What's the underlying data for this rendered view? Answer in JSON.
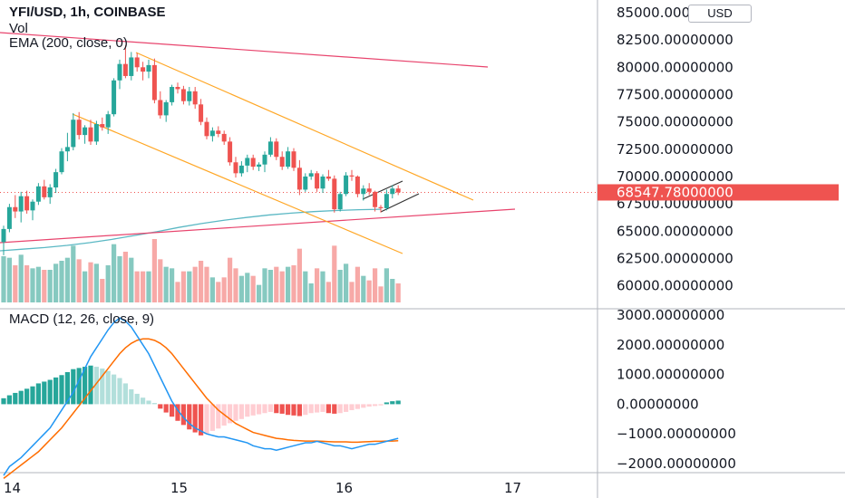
{
  "header": {
    "symbol_line": "YFI/USD, 1h, COINBASE",
    "volume_label": "Vol",
    "ema_label": "EMA (200, close, 0)",
    "macd_label": "MACD (12, 26, close, 9)",
    "currency": "USD"
  },
  "price_axis": {
    "labels": [
      "85000.00000000",
      "82500.00000000",
      "80000.00000000",
      "77500.00000000",
      "75000.00000000",
      "72500.00000000",
      "70000.00000000",
      "67500.00000000",
      "65000.00000000",
      "62500.00000000",
      "60000.00000000"
    ],
    "last_price_label": "68547.78000000"
  },
  "macd_axis": {
    "labels": [
      "3000.00000000",
      "2000.00000000",
      "1000.00000000",
      "0.00000000",
      "−1000.00000000",
      "−2000.00000000"
    ]
  },
  "time_axis": {
    "labels": [
      "14",
      "15",
      "16",
      "17"
    ]
  },
  "colors": {
    "up": "#26a69a",
    "down": "#ef5350",
    "vol_up": "#86c9c0",
    "vol_down": "#f7a9a7",
    "ema": "#5bb8c4",
    "channel": "#ffa726",
    "trend": "#e8446d",
    "macd": "#2196f3",
    "signal": "#ff6d00"
  },
  "chart_data": {
    "type": "candlestick",
    "symbol": "YFI/USD",
    "timeframe": "1h",
    "exchange": "COINBASE",
    "price_range": [
      58500,
      86000
    ],
    "last_price": 68547.78,
    "candles": [
      [
        64000,
        65500,
        62800,
        65200
      ],
      [
        65200,
        67500,
        64900,
        67200
      ],
      [
        67200,
        68300,
        66200,
        66800
      ],
      [
        66800,
        68600,
        65800,
        68200
      ],
      [
        68200,
        68700,
        66600,
        66900
      ],
      [
        66900,
        67900,
        66000,
        67700
      ],
      [
        67700,
        69400,
        67400,
        69100
      ],
      [
        69100,
        69700,
        67900,
        68100
      ],
      [
        68100,
        69300,
        67500,
        69000
      ],
      [
        69000,
        70700,
        68500,
        70400
      ],
      [
        70400,
        72600,
        70200,
        72300
      ],
      [
        72300,
        74000,
        71400,
        72700
      ],
      [
        72700,
        75800,
        72400,
        75200
      ],
      [
        75200,
        75900,
        73400,
        73800
      ],
      [
        73800,
        74700,
        73000,
        74500
      ],
      [
        74500,
        75200,
        72900,
        73200
      ],
      [
        73200,
        75100,
        72900,
        74800
      ],
      [
        74800,
        75400,
        74200,
        74500
      ],
      [
        74500,
        76000,
        73900,
        75700
      ],
      [
        75700,
        79000,
        75500,
        78800
      ],
      [
        78800,
        80700,
        78000,
        80300
      ],
      [
        80300,
        82000,
        79000,
        79200
      ],
      [
        79200,
        81400,
        78800,
        80900
      ],
      [
        80900,
        81300,
        79600,
        80000
      ],
      [
        80000,
        80500,
        78800,
        79600
      ],
      [
        79600,
        80700,
        79000,
        80200
      ],
      [
        80200,
        80800,
        76700,
        77000
      ],
      [
        77000,
        77800,
        75300,
        75600
      ],
      [
        75600,
        77000,
        75000,
        76800
      ],
      [
        76800,
        78400,
        76500,
        78200
      ],
      [
        78200,
        78600,
        77600,
        78000
      ],
      [
        78000,
        78300,
        76600,
        76900
      ],
      [
        76900,
        78200,
        76500,
        77800
      ],
      [
        77800,
        78200,
        76200,
        76600
      ],
      [
        76600,
        77100,
        74700,
        75000
      ],
      [
        75000,
        75400,
        73400,
        73700
      ],
      [
        73700,
        74500,
        73200,
        74200
      ],
      [
        74200,
        74600,
        73600,
        73900
      ],
      [
        73900,
        74200,
        72900,
        73200
      ],
      [
        73200,
        73600,
        71000,
        71300
      ],
      [
        71300,
        71800,
        69900,
        70300
      ],
      [
        70300,
        71400,
        70000,
        71000
      ],
      [
        71000,
        72000,
        70400,
        71700
      ],
      [
        71700,
        72000,
        70600,
        70900
      ],
      [
        70900,
        71300,
        70500,
        71100
      ],
      [
        71100,
        72300,
        70400,
        72000
      ],
      [
        72000,
        73600,
        71800,
        73200
      ],
      [
        73200,
        73500,
        71500,
        71800
      ],
      [
        71800,
        72300,
        70600,
        70900
      ],
      [
        70900,
        72700,
        70700,
        72300
      ],
      [
        72300,
        72600,
        70500,
        70800
      ],
      [
        70800,
        71500,
        68300,
        68800
      ],
      [
        68800,
        70300,
        68600,
        70000
      ],
      [
        70000,
        70600,
        69700,
        70300
      ],
      [
        70300,
        70500,
        68600,
        68900
      ],
      [
        68900,
        70200,
        68500,
        70000
      ],
      [
        70000,
        70600,
        69600,
        69800
      ],
      [
        69800,
        70100,
        66700,
        67000
      ],
      [
        67000,
        68600,
        66800,
        68400
      ],
      [
        68400,
        70400,
        68200,
        70100
      ],
      [
        70100,
        70600,
        69600,
        70000
      ],
      [
        70000,
        70100,
        68100,
        68400
      ],
      [
        68400,
        69200,
        67800,
        68900
      ],
      [
        68900,
        69400,
        68300,
        68600
      ],
      [
        68600,
        68700,
        66800,
        67200
      ],
      [
        67200,
        67400,
        66700,
        67100
      ],
      [
        67100,
        68800,
        66900,
        68400
      ],
      [
        68400,
        69200,
        68000,
        68900
      ],
      [
        68900,
        69200,
        68300,
        68548
      ]
    ],
    "ema_200": [
      63200,
      63350,
      63500,
      63700,
      63950,
      64250,
      64600,
      64950,
      65350,
      65700,
      66000,
      66250,
      66480,
      66650,
      66790,
      66890,
      66960,
      67000
    ],
    "ascending_channel_note": "",
    "macd": {
      "range": [
        -2500,
        3400
      ],
      "histogram": [
        200,
        300,
        380,
        450,
        520,
        600,
        700,
        760,
        820,
        900,
        980,
        1080,
        1180,
        1220,
        1260,
        1300,
        1260,
        1200,
        1120,
        1000,
        880,
        700,
        500,
        350,
        220,
        120,
        40,
        -150,
        -280,
        -420,
        -560,
        -700,
        -850,
        -950,
        -1050,
        -1000,
        -900,
        -820,
        -720,
        -640,
        -560,
        -500,
        -420,
        -380,
        -340,
        -300,
        -260,
        -300,
        -320,
        -360,
        -380,
        -400,
        -360,
        -300,
        -280,
        -260,
        -300,
        -320,
        -300,
        -260,
        -200,
        -160,
        -120,
        -80,
        -60,
        -40,
        60,
        100,
        120
      ],
      "macd_line": [
        -2400,
        -2100,
        -1950,
        -1800,
        -1600,
        -1400,
        -1200,
        -1000,
        -800,
        -500,
        -200,
        100,
        400,
        800,
        1200,
        1600,
        1900,
        2200,
        2500,
        2750,
        2900,
        2800,
        2600,
        2300,
        2000,
        1700,
        1300,
        900,
        500,
        100,
        -200,
        -450,
        -650,
        -800,
        -900,
        -1000,
        -1050,
        -1100,
        -1100,
        -1150,
        -1200,
        -1250,
        -1300,
        -1400,
        -1450,
        -1500,
        -1500,
        -1550,
        -1500,
        -1450,
        -1400,
        -1350,
        -1300,
        -1300,
        -1250,
        -1300,
        -1350,
        -1400,
        -1400,
        -1450,
        -1500,
        -1450,
        -1400,
        -1350,
        -1350,
        -1300,
        -1250,
        -1200,
        -1150
      ],
      "signal_line": [
        -2500,
        -2350,
        -2200,
        -2050,
        -1900,
        -1750,
        -1600,
        -1400,
        -1200,
        -1000,
        -800,
        -550,
        -300,
        -50,
        200,
        450,
        700,
        950,
        1200,
        1450,
        1700,
        1900,
        2050,
        2150,
        2200,
        2200,
        2150,
        2050,
        1900,
        1700,
        1450,
        1200,
        950,
        700,
        450,
        200,
        0,
        -200,
        -350,
        -500,
        -650,
        -750,
        -850,
        -950,
        -1000,
        -1050,
        -1100,
        -1150,
        -1170,
        -1200,
        -1220,
        -1230,
        -1240,
        -1240,
        -1240,
        -1250,
        -1260,
        -1270,
        -1270,
        -1270,
        -1280,
        -1280,
        -1270,
        -1260,
        -1250,
        -1250,
        -1240,
        -1240,
        -1230
      ]
    }
  }
}
